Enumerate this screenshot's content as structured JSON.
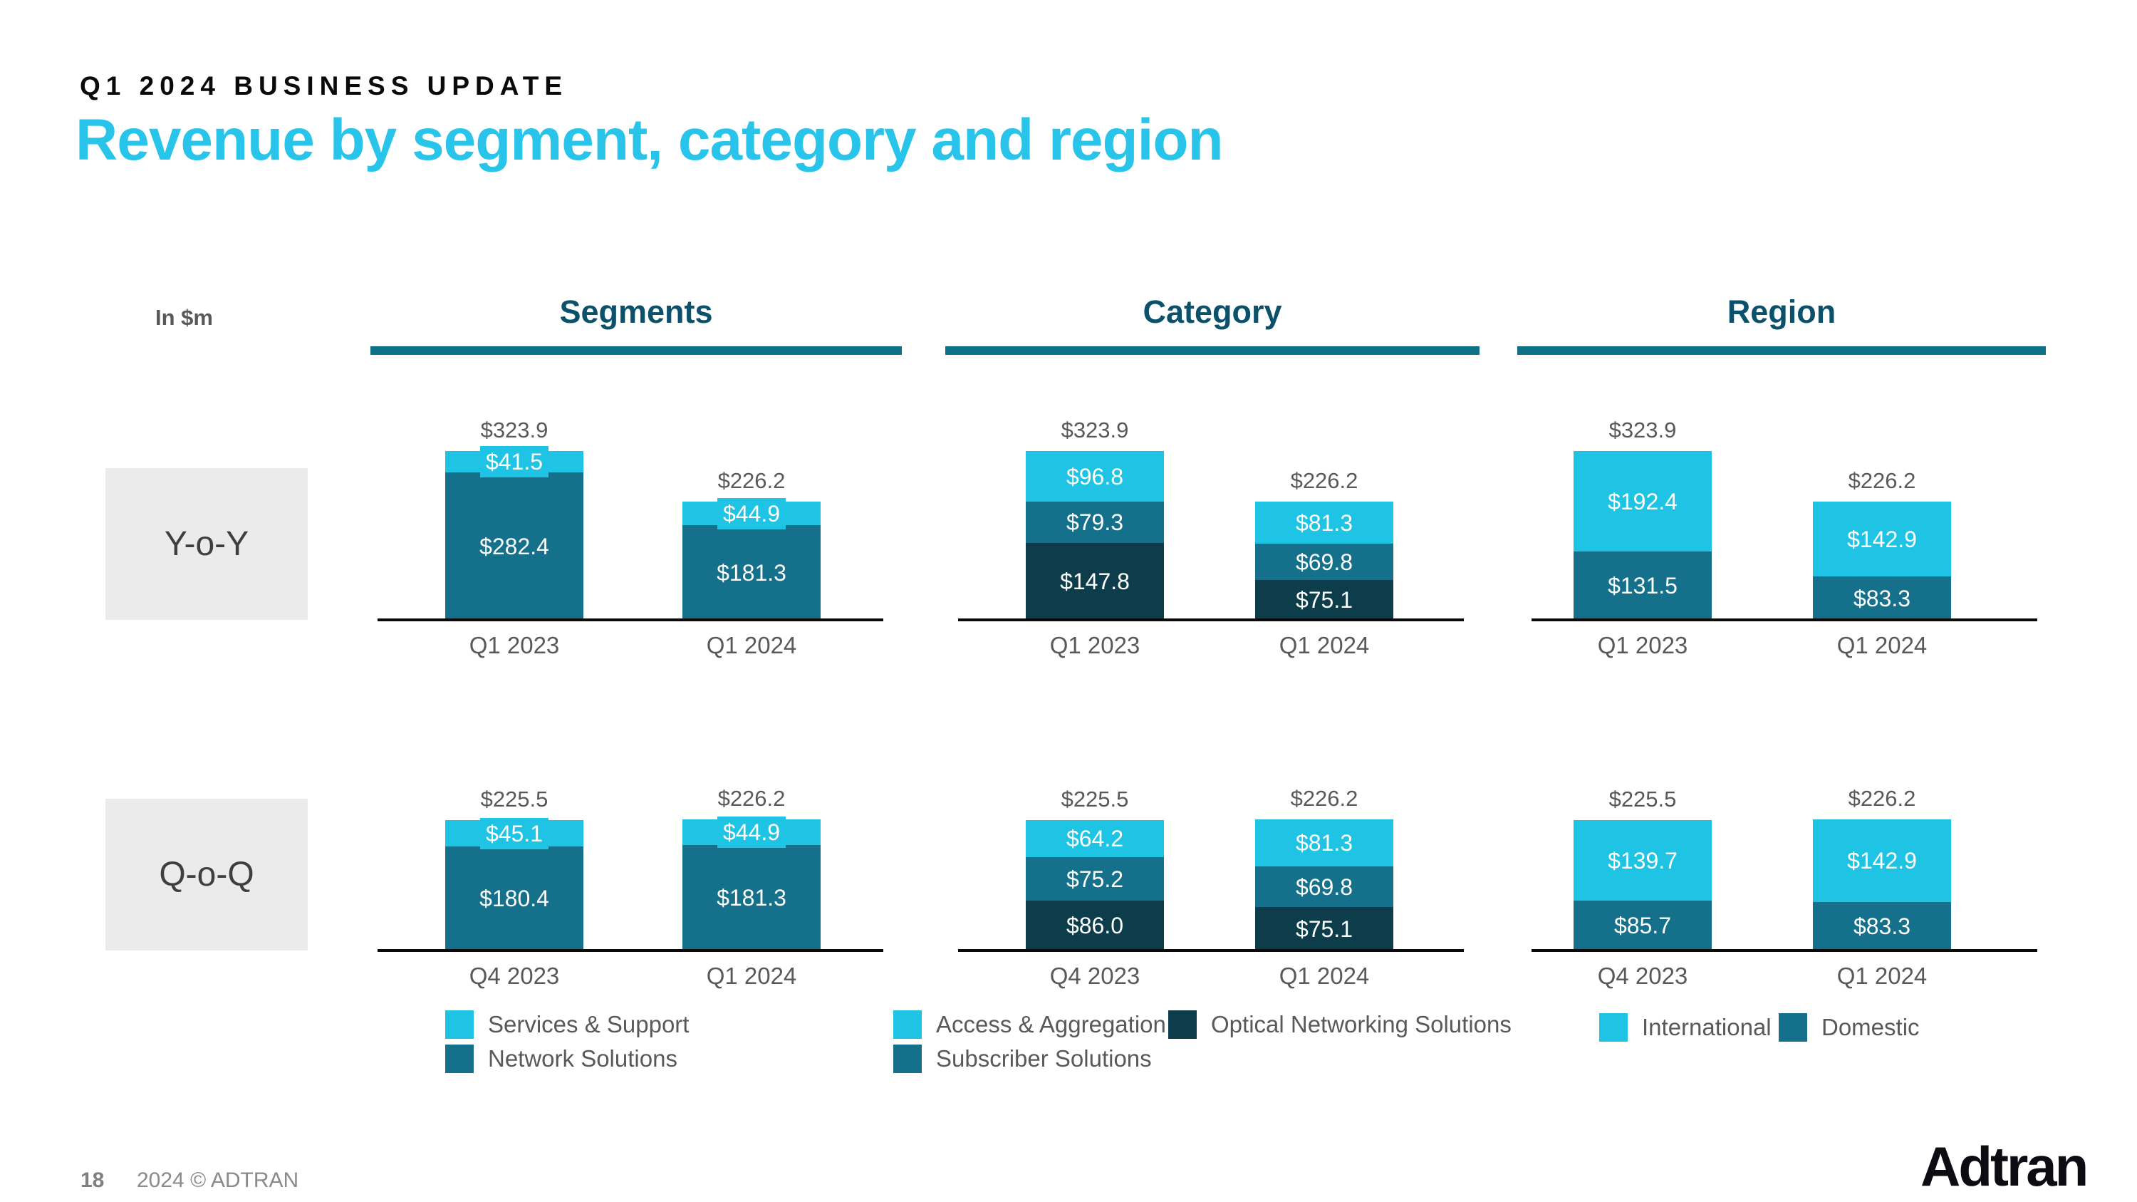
{
  "slide": {
    "eyebrow": "Q1 2024 BUSINESS UPDATE",
    "title": "Revenue by segment, category and region",
    "units_label": "In $m"
  },
  "colors": {
    "cyan": "#1FC4E4",
    "teal": "#14708B",
    "dark_teal": "#0D3D4B",
    "title_cyan": "#29C4E9",
    "header_teal": "#0B516B",
    "underline_teal": "#0E7187",
    "axis_black": "#0A0A0A",
    "label_gray": "#595959",
    "row_box_gray": "#EBEBEB"
  },
  "sections": [
    {
      "label": "Segments"
    },
    {
      "label": "Category"
    },
    {
      "label": "Region"
    }
  ],
  "row_labels": [
    {
      "label": "Y-o-Y"
    },
    {
      "label": "Q-o-Q"
    }
  ],
  "chart_data": [
    {
      "type": "bar",
      "stacked": true,
      "row": "Y-o-Y",
      "section": "Segments",
      "categories": [
        "Q1 2023",
        "Q1 2024"
      ],
      "totals": [
        323.9,
        226.2
      ],
      "total_labels": [
        "$323.9",
        "$226.2"
      ],
      "series": [
        {
          "name": "Services & Support",
          "color": "cyan",
          "values": [
            41.5,
            44.9
          ],
          "labels": [
            "$41.5",
            "$44.9"
          ]
        },
        {
          "name": "Network Solutions",
          "color": "teal",
          "values": [
            282.4,
            181.3
          ],
          "labels": [
            "$282.4",
            "$181.3"
          ]
        }
      ]
    },
    {
      "type": "bar",
      "stacked": true,
      "row": "Y-o-Y",
      "section": "Category",
      "categories": [
        "Q1 2023",
        "Q1 2024"
      ],
      "totals": [
        323.9,
        226.2
      ],
      "total_labels": [
        "$323.9",
        "$226.2"
      ],
      "series": [
        {
          "name": "Access & Aggregation",
          "color": "cyan",
          "values": [
            96.8,
            81.3
          ],
          "labels": [
            "$96.8",
            "$81.3"
          ]
        },
        {
          "name": "Subscriber Solutions",
          "color": "teal",
          "values": [
            79.3,
            69.8
          ],
          "labels": [
            "$79.3",
            "$69.8"
          ]
        },
        {
          "name": "Optical Networking Solutions",
          "color": "dark_teal",
          "values": [
            147.8,
            75.1
          ],
          "labels": [
            "$147.8",
            "$75.1"
          ]
        }
      ]
    },
    {
      "type": "bar",
      "stacked": true,
      "row": "Y-o-Y",
      "section": "Region",
      "categories": [
        "Q1 2023",
        "Q1 2024"
      ],
      "totals": [
        323.9,
        226.2
      ],
      "total_labels": [
        "$323.9",
        "$226.2"
      ],
      "series": [
        {
          "name": "International",
          "color": "cyan",
          "values": [
            192.4,
            142.9
          ],
          "labels": [
            "$192.4",
            "$142.9"
          ]
        },
        {
          "name": "Domestic",
          "color": "teal",
          "values": [
            131.5,
            83.3
          ],
          "labels": [
            "$131.5",
            "$83.3"
          ]
        }
      ]
    },
    {
      "type": "bar",
      "stacked": true,
      "row": "Q-o-Q",
      "section": "Segments",
      "categories": [
        "Q4 2023",
        "Q1 2024"
      ],
      "totals": [
        225.5,
        226.2
      ],
      "total_labels": [
        "$225.5",
        "$226.2"
      ],
      "series": [
        {
          "name": "Services & Support",
          "color": "cyan",
          "values": [
            45.1,
            44.9
          ],
          "labels": [
            "$45.1",
            "$44.9"
          ]
        },
        {
          "name": "Network Solutions",
          "color": "teal",
          "values": [
            180.4,
            181.3
          ],
          "labels": [
            "$180.4",
            "$181.3"
          ]
        }
      ]
    },
    {
      "type": "bar",
      "stacked": true,
      "row": "Q-o-Q",
      "section": "Category",
      "categories": [
        "Q4 2023",
        "Q1 2024"
      ],
      "totals": [
        225.5,
        226.2
      ],
      "total_labels": [
        "$225.5",
        "$226.2"
      ],
      "series": [
        {
          "name": "Access & Aggregation",
          "color": "cyan",
          "values": [
            64.2,
            81.3
          ],
          "labels": [
            "$64.2",
            "$81.3"
          ]
        },
        {
          "name": "Subscriber Solutions",
          "color": "teal",
          "values": [
            75.2,
            69.8
          ],
          "labels": [
            "$75.2",
            "$69.8"
          ]
        },
        {
          "name": "Optical Networking Solutions",
          "color": "dark_teal",
          "values": [
            86.0,
            75.1
          ],
          "labels": [
            "$86.0",
            "$75.1"
          ]
        }
      ]
    },
    {
      "type": "bar",
      "stacked": true,
      "row": "Q-o-Q",
      "section": "Region",
      "categories": [
        "Q4 2023",
        "Q1 2024"
      ],
      "totals": [
        225.5,
        226.2
      ],
      "total_labels": [
        "$225.5",
        "$226.2"
      ],
      "series": [
        {
          "name": "International",
          "color": "cyan",
          "values": [
            139.7,
            142.9
          ],
          "labels": [
            "$139.7",
            "$142.9"
          ]
        },
        {
          "name": "Domestic",
          "color": "teal",
          "values": [
            85.7,
            83.3
          ],
          "labels": [
            "$85.7",
            "$83.3"
          ]
        }
      ]
    }
  ],
  "legends": [
    {
      "section": "Segments",
      "rows": [
        [
          {
            "color": "cyan",
            "label": "Services & Support"
          }
        ],
        [
          {
            "color": "teal",
            "label": "Network Solutions"
          }
        ]
      ]
    },
    {
      "section": "Category",
      "rows": [
        [
          {
            "color": "cyan",
            "label": "Access & Aggregation"
          },
          {
            "color": "dark_teal",
            "label": "Optical Networking Solutions"
          }
        ],
        [
          {
            "color": "teal",
            "label": "Subscriber Solutions"
          }
        ]
      ]
    },
    {
      "section": "Region",
      "rows": [
        [
          {
            "color": "cyan",
            "label": "International"
          },
          {
            "color": "teal",
            "label": "Domestic"
          }
        ]
      ]
    }
  ],
  "footer": {
    "page_number": "18",
    "copyright": "2024 © ADTRAN",
    "logo_text": "Adtran"
  }
}
